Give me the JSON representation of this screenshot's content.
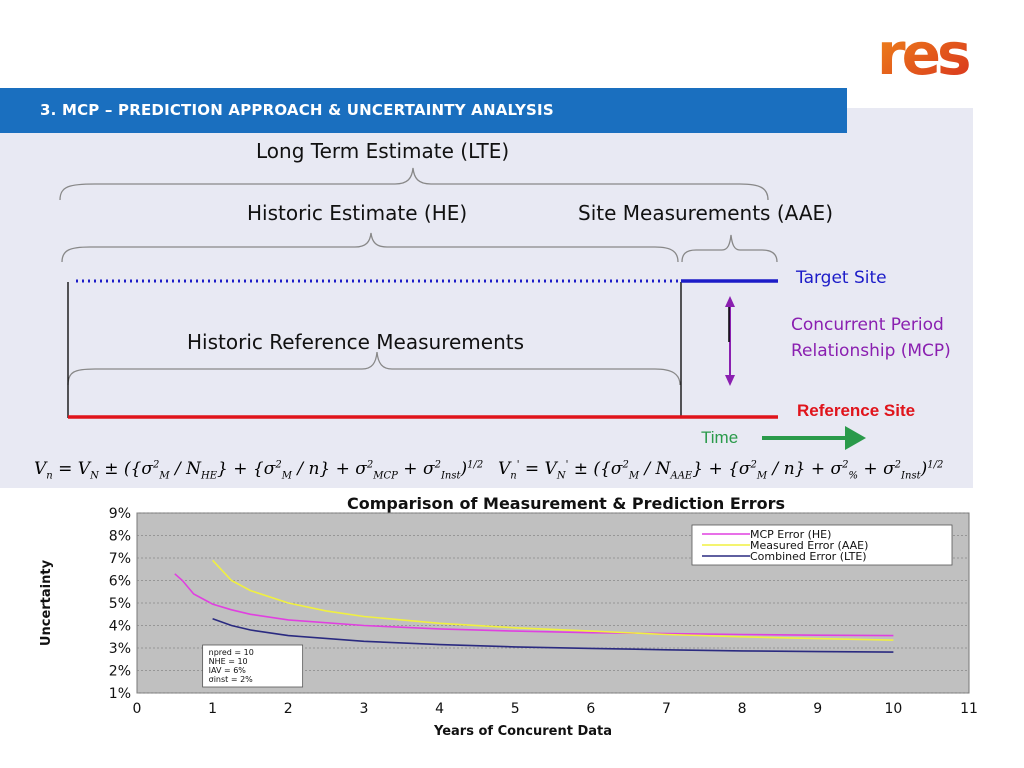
{
  "logo": {
    "text": "res",
    "color": "#e35a1b"
  },
  "header": {
    "title": "3.  MCP – PREDICTION APPROACH & UNCERTAINTY ANALYSIS",
    "color": "#1a6fbf"
  },
  "diagram": {
    "lte_label": "Long Term Estimate (LTE)",
    "he_label": "Historic Estimate (HE)",
    "aae_label": "Site Measurements (AAE)",
    "target_label": "Target Site",
    "mcp_label_line1": "Concurrent Period",
    "mcp_label_line2": "Relationship (MCP)",
    "hist_ref_label": "Historic Reference Measurements",
    "reference_label": "Reference Site",
    "time_label": "Time",
    "colors": {
      "target": "#1c1cc8",
      "reference": "#e0141b",
      "mcp": "#8a1fb0",
      "time": "#2a9a4a"
    }
  },
  "equations": {
    "left": "V_n = V_N ± ({σ_M² / N_HE} + {σ_M² / n} + σ_MCP² + σ_Inst²)^1/2",
    "right": "V_n' = V_N' ± ({σ_M² / N_AAE} + {σ_M² / n} + σ_%² + σ_Inst²)^1/2"
  },
  "chart_data": {
    "type": "line",
    "title": "Comparison of Measurement & Prediction Errors",
    "xlabel": "Years of Concurent Data",
    "ylabel": "Uncertainty",
    "xlim": [
      0,
      11
    ],
    "ylim": [
      1,
      9
    ],
    "x_ticks": [
      "0",
      "1",
      "2",
      "3",
      "4",
      "5",
      "6",
      "7",
      "8",
      "9",
      "10",
      "11"
    ],
    "y_ticks": [
      "1%",
      "2%",
      "3%",
      "4%",
      "5%",
      "6%",
      "7%",
      "8%",
      "9%"
    ],
    "grid": true,
    "legend_position": "top-right",
    "series": [
      {
        "name": "MCP Error (HE)",
        "color": "#e040e0",
        "points": [
          [
            0.5,
            6.3
          ],
          [
            0.6,
            6.0
          ],
          [
            0.75,
            5.4
          ],
          [
            1,
            4.95
          ],
          [
            1.25,
            4.7
          ],
          [
            1.5,
            4.5
          ],
          [
            2,
            4.25
          ],
          [
            3,
            4.0
          ],
          [
            4,
            3.85
          ],
          [
            5,
            3.75
          ],
          [
            6,
            3.68
          ],
          [
            7,
            3.64
          ],
          [
            8,
            3.6
          ],
          [
            9,
            3.57
          ],
          [
            10,
            3.55
          ]
        ]
      },
      {
        "name": "Measured Error (AAE)",
        "color": "#f0f040",
        "points": [
          [
            1,
            6.9
          ],
          [
            1.25,
            6.0
          ],
          [
            1.5,
            5.55
          ],
          [
            2,
            5.0
          ],
          [
            2.5,
            4.65
          ],
          [
            3,
            4.4
          ],
          [
            4,
            4.1
          ],
          [
            5,
            3.9
          ],
          [
            6,
            3.75
          ],
          [
            7,
            3.6
          ],
          [
            8,
            3.5
          ],
          [
            9,
            3.42
          ],
          [
            10,
            3.35
          ]
        ]
      },
      {
        "name": "Combined Error (LTE)",
        "color": "#2a2a80",
        "points": [
          [
            1,
            4.3
          ],
          [
            1.25,
            4.0
          ],
          [
            1.5,
            3.8
          ],
          [
            2,
            3.55
          ],
          [
            3,
            3.3
          ],
          [
            4,
            3.15
          ],
          [
            5,
            3.05
          ],
          [
            6,
            2.98
          ],
          [
            7,
            2.92
          ],
          [
            8,
            2.87
          ],
          [
            9,
            2.84
          ],
          [
            10,
            2.82
          ]
        ]
      }
    ],
    "annotation": [
      "npred = 10",
      "NHE = 10",
      "IAV = 6%",
      "σinst = 2%"
    ],
    "plot_bg": "#c0c0c0"
  }
}
